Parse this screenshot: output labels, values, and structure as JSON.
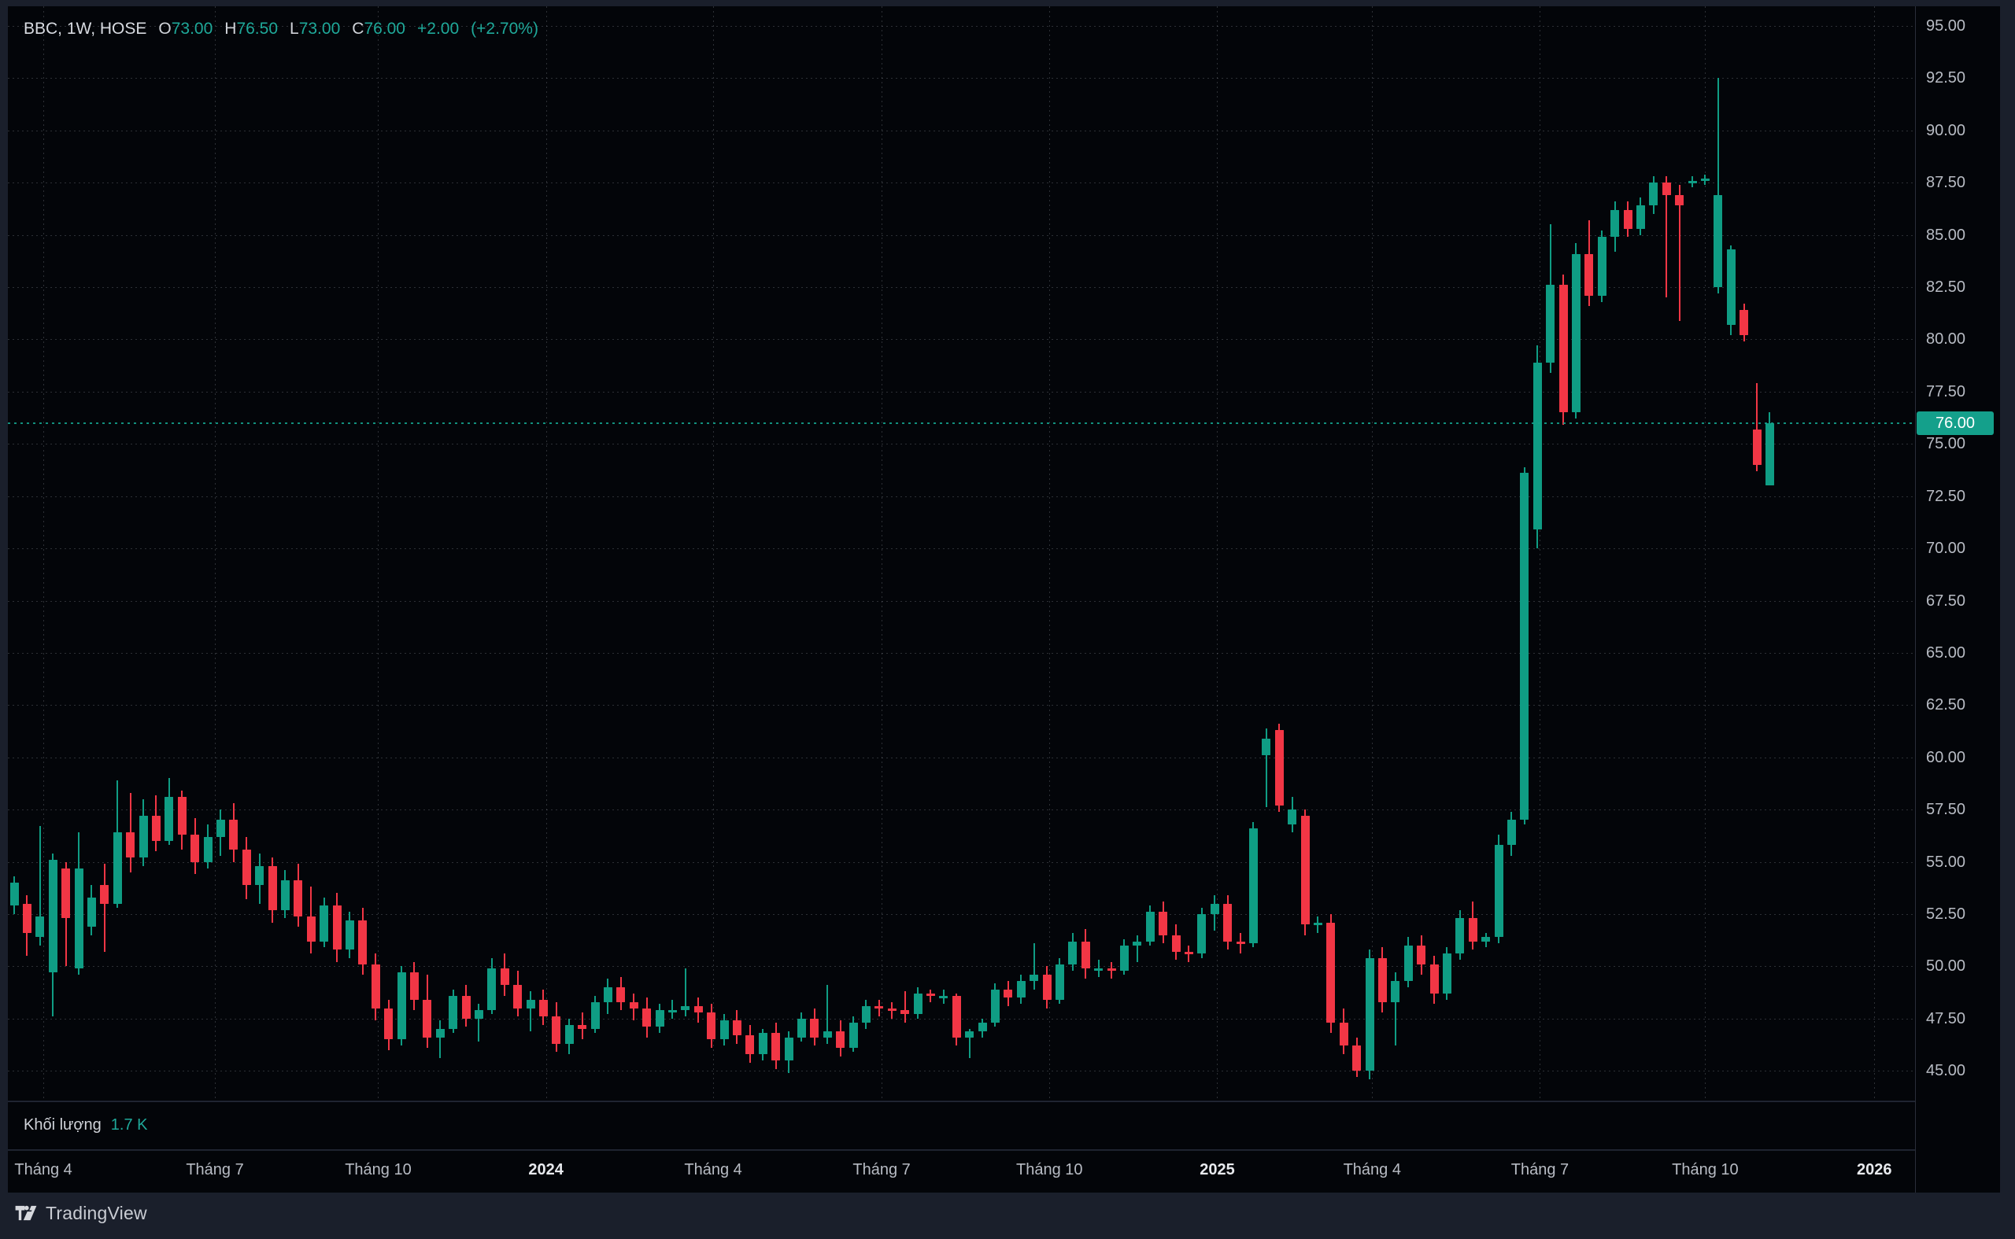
{
  "colors": {
    "up": "#0f9d84",
    "down": "#f23645",
    "accent": "#14a08b",
    "background": "#030509",
    "frame": "#1a1f2b",
    "axis_text": "#b8bcc4"
  },
  "legend": {
    "title": "BBC, 1W, HOSE",
    "open_label": "O",
    "open_value": "73.00",
    "high_label": "H",
    "high_value": "76.50",
    "low_label": "L",
    "low_value": "73.00",
    "close_label": "C",
    "close_value": "76.00",
    "change": "+2.00",
    "change_pct": "(+2.70%)"
  },
  "price_axis": {
    "labels": [
      "95.00",
      "92.50",
      "90.00",
      "87.50",
      "85.00",
      "82.50",
      "80.00",
      "77.50",
      "75.00",
      "72.50",
      "70.00",
      "67.50",
      "65.00",
      "62.50",
      "60.00",
      "57.50",
      "55.00",
      "52.50",
      "50.00",
      "47.50",
      "45.00"
    ],
    "current_price_label": "76.00"
  },
  "time_axis": {
    "labels": [
      {
        "text": "Tháng 4",
        "i": 2.26,
        "year": false
      },
      {
        "text": "Tháng 7",
        "i": 15.55,
        "year": false
      },
      {
        "text": "Tháng 10",
        "i": 28.2,
        "year": false
      },
      {
        "text": "2024",
        "i": 41.2,
        "year": true
      },
      {
        "text": "Tháng 4",
        "i": 54.15,
        "year": false
      },
      {
        "text": "Tháng 7",
        "i": 67.2,
        "year": false
      },
      {
        "text": "Tháng 10",
        "i": 80.2,
        "year": false
      },
      {
        "text": "2025",
        "i": 93.2,
        "year": true
      },
      {
        "text": "Tháng 4",
        "i": 105.2,
        "year": false
      },
      {
        "text": "Tháng 7",
        "i": 118.2,
        "year": false
      },
      {
        "text": "Tháng 10",
        "i": 131.0,
        "year": false
      },
      {
        "text": "2026",
        "i": 144.1,
        "year": true
      }
    ]
  },
  "volume_pane": {
    "title": "Khối lượng",
    "value": "1.7 K"
  },
  "watermark": {
    "icon": "tradingview-logo",
    "text": "TradingView"
  },
  "chart_data": {
    "type": "candlestick",
    "symbol": "BBC",
    "interval": "1W",
    "exchange": "HOSE",
    "last": {
      "open": 73.0,
      "high": 76.5,
      "low": 73.0,
      "close": 76.0,
      "change": 2.0,
      "change_pct": 2.7
    },
    "current_price": 76.0,
    "last_bar_volume": "1.7 K",
    "price_axis_range": [
      43.6,
      95.9
    ],
    "price_step": 2.5,
    "grid": true,
    "x_axis_labels": [
      "Tháng 4",
      "Tháng 7",
      "Tháng 10",
      "2024",
      "Tháng 4",
      "Tháng 7",
      "Tháng 10",
      "2025",
      "Tháng 4",
      "Tháng 7",
      "Tháng 10",
      "2026"
    ],
    "candles_format": [
      "open",
      "high",
      "low",
      "close"
    ],
    "candles": [
      [
        52.9,
        54.3,
        52.5,
        54.0
      ],
      [
        53.0,
        53.4,
        50.5,
        51.6
      ],
      [
        51.4,
        56.7,
        51.0,
        52.4
      ],
      [
        49.7,
        55.4,
        47.6,
        55.1
      ],
      [
        54.7,
        55.0,
        50.0,
        52.3
      ],
      [
        49.9,
        56.4,
        49.6,
        54.7
      ],
      [
        51.9,
        53.9,
        51.5,
        53.3
      ],
      [
        53.9,
        54.9,
        50.7,
        53.0
      ],
      [
        53.0,
        58.9,
        52.8,
        56.4
      ],
      [
        56.4,
        58.3,
        54.5,
        55.2
      ],
      [
        55.2,
        58.0,
        54.8,
        57.2
      ],
      [
        57.2,
        58.2,
        55.5,
        56.0
      ],
      [
        56.0,
        59.0,
        55.8,
        58.1
      ],
      [
        58.1,
        58.4,
        55.6,
        56.3
      ],
      [
        56.3,
        57.1,
        54.4,
        55.0
      ],
      [
        55.0,
        56.8,
        54.7,
        56.2
      ],
      [
        56.2,
        57.5,
        55.3,
        57.0
      ],
      [
        57.0,
        57.8,
        55.0,
        55.6
      ],
      [
        55.6,
        56.2,
        53.2,
        53.9
      ],
      [
        53.9,
        55.4,
        53.0,
        54.8
      ],
      [
        54.8,
        55.2,
        52.1,
        52.7
      ],
      [
        52.7,
        54.6,
        52.3,
        54.1
      ],
      [
        54.1,
        54.9,
        51.9,
        52.4
      ],
      [
        52.4,
        53.8,
        50.6,
        51.2
      ],
      [
        51.2,
        53.3,
        50.9,
        52.9
      ],
      [
        52.9,
        53.5,
        50.2,
        50.8
      ],
      [
        50.8,
        52.6,
        50.4,
        52.2
      ],
      [
        52.2,
        52.8,
        49.6,
        50.1
      ],
      [
        50.1,
        50.6,
        47.4,
        48.0
      ],
      [
        48.0,
        48.4,
        46.0,
        46.5
      ],
      [
        46.5,
        50.0,
        46.2,
        49.7
      ],
      [
        49.7,
        50.2,
        47.9,
        48.4
      ],
      [
        48.4,
        49.6,
        46.1,
        46.6
      ],
      [
        46.6,
        47.4,
        45.6,
        47.0
      ],
      [
        47.0,
        48.9,
        46.8,
        48.6
      ],
      [
        48.6,
        49.1,
        47.1,
        47.5
      ],
      [
        47.5,
        48.2,
        46.4,
        47.9
      ],
      [
        47.9,
        50.4,
        47.7,
        49.9
      ],
      [
        49.9,
        50.6,
        48.6,
        49.1
      ],
      [
        49.1,
        49.8,
        47.6,
        48.0
      ],
      [
        48.0,
        48.8,
        46.9,
        48.4
      ],
      [
        48.4,
        48.9,
        47.2,
        47.6
      ],
      [
        47.6,
        48.3,
        45.9,
        46.3
      ],
      [
        46.3,
        47.5,
        45.8,
        47.2
      ],
      [
        47.2,
        47.8,
        46.5,
        47.0
      ],
      [
        47.0,
        48.6,
        46.8,
        48.3
      ],
      [
        48.3,
        49.4,
        47.7,
        49.0
      ],
      [
        49.0,
        49.5,
        47.9,
        48.3
      ],
      [
        48.3,
        48.7,
        47.4,
        48.0
      ],
      [
        48.0,
        48.5,
        46.6,
        47.1
      ],
      [
        47.1,
        48.2,
        46.8,
        47.9
      ],
      [
        47.9,
        48.4,
        47.5,
        47.9
      ],
      [
        47.9,
        49.9,
        47.6,
        48.1
      ],
      [
        48.1,
        48.5,
        47.3,
        47.8
      ],
      [
        47.8,
        48.2,
        46.1,
        46.5
      ],
      [
        46.5,
        47.7,
        46.2,
        47.4
      ],
      [
        47.4,
        47.9,
        46.3,
        46.7
      ],
      [
        46.7,
        47.2,
        45.4,
        45.8
      ],
      [
        45.8,
        47.0,
        45.5,
        46.8
      ],
      [
        46.8,
        47.3,
        45.1,
        45.5
      ],
      [
        45.5,
        46.9,
        44.9,
        46.6
      ],
      [
        46.6,
        47.8,
        46.4,
        47.5
      ],
      [
        47.5,
        48.0,
        46.2,
        46.6
      ],
      [
        46.6,
        49.1,
        46.3,
        46.9
      ],
      [
        46.9,
        47.4,
        45.7,
        46.1
      ],
      [
        46.1,
        47.6,
        45.9,
        47.3
      ],
      [
        47.3,
        48.4,
        47.0,
        48.1
      ],
      [
        48.1,
        48.4,
        47.6,
        48.0
      ],
      [
        48.0,
        48.3,
        47.5,
        47.9
      ],
      [
        47.9,
        48.8,
        47.3,
        47.7
      ],
      [
        47.7,
        49.0,
        47.5,
        48.7
      ],
      [
        48.7,
        48.9,
        48.3,
        48.6
      ],
      [
        48.6,
        48.9,
        48.2,
        48.6
      ],
      [
        48.6,
        48.7,
        46.2,
        46.6
      ],
      [
        46.6,
        47.0,
        45.6,
        46.9
      ],
      [
        46.9,
        47.5,
        46.6,
        47.3
      ],
      [
        47.3,
        49.2,
        47.1,
        48.9
      ],
      [
        48.9,
        49.3,
        48.1,
        48.5
      ],
      [
        48.5,
        49.6,
        48.2,
        49.3
      ],
      [
        49.3,
        51.1,
        48.9,
        49.6
      ],
      [
        49.6,
        50.0,
        48.0,
        48.4
      ],
      [
        48.4,
        50.4,
        48.2,
        50.1
      ],
      [
        50.1,
        51.6,
        49.8,
        51.2
      ],
      [
        51.2,
        51.8,
        49.4,
        49.9
      ],
      [
        49.9,
        50.3,
        49.5,
        49.9
      ],
      [
        49.9,
        50.2,
        49.4,
        49.8
      ],
      [
        49.8,
        51.3,
        49.6,
        51.0
      ],
      [
        51.0,
        51.5,
        50.2,
        51.2
      ],
      [
        51.2,
        52.9,
        51.0,
        52.6
      ],
      [
        52.6,
        53.1,
        51.1,
        51.5
      ],
      [
        51.5,
        52.0,
        50.3,
        50.7
      ],
      [
        50.7,
        51.0,
        50.2,
        50.6
      ],
      [
        50.6,
        52.8,
        50.4,
        52.5
      ],
      [
        52.5,
        53.4,
        51.7,
        53.0
      ],
      [
        53.0,
        53.4,
        50.8,
        51.2
      ],
      [
        51.2,
        51.6,
        50.6,
        51.1
      ],
      [
        51.1,
        56.9,
        50.9,
        56.6
      ],
      [
        60.1,
        61.4,
        57.6,
        60.9
      ],
      [
        61.3,
        61.6,
        57.4,
        57.7
      ],
      [
        56.8,
        58.1,
        56.4,
        57.5
      ],
      [
        57.2,
        57.5,
        51.5,
        52.0
      ],
      [
        52.0,
        52.4,
        51.6,
        52.1
      ],
      [
        52.1,
        52.5,
        46.8,
        47.3
      ],
      [
        47.3,
        48.0,
        45.8,
        46.2
      ],
      [
        46.2,
        46.6,
        44.7,
        45.0
      ],
      [
        45.0,
        50.8,
        44.6,
        50.4
      ],
      [
        50.4,
        50.9,
        47.8,
        48.3
      ],
      [
        48.3,
        49.7,
        46.2,
        49.3
      ],
      [
        49.3,
        51.4,
        49.0,
        51.0
      ],
      [
        51.0,
        51.5,
        49.6,
        50.1
      ],
      [
        50.1,
        50.5,
        48.2,
        48.7
      ],
      [
        48.7,
        50.9,
        48.4,
        50.6
      ],
      [
        50.6,
        52.7,
        50.3,
        52.3
      ],
      [
        52.3,
        53.1,
        50.8,
        51.2
      ],
      [
        51.2,
        51.6,
        50.9,
        51.4
      ],
      [
        51.4,
        56.3,
        51.1,
        55.8
      ],
      [
        55.8,
        57.4,
        55.3,
        57.0
      ],
      [
        57.0,
        73.9,
        56.8,
        73.6
      ],
      [
        70.9,
        79.7,
        70.0,
        78.9
      ],
      [
        78.9,
        85.5,
        78.4,
        82.6
      ],
      [
        82.6,
        83.1,
        75.9,
        76.5
      ],
      [
        76.5,
        84.6,
        76.2,
        84.1
      ],
      [
        84.1,
        85.7,
        81.6,
        82.1
      ],
      [
        82.1,
        85.2,
        81.8,
        84.9
      ],
      [
        84.9,
        86.6,
        84.2,
        86.2
      ],
      [
        86.2,
        86.6,
        84.9,
        85.3
      ],
      [
        85.3,
        86.8,
        85.0,
        86.4
      ],
      [
        86.4,
        87.8,
        86.0,
        87.5
      ],
      [
        87.5,
        87.8,
        82.0,
        86.9
      ],
      [
        86.9,
        87.4,
        80.9,
        86.4
      ],
      [
        87.5,
        87.8,
        87.3,
        87.6
      ],
      [
        87.6,
        87.9,
        87.4,
        87.7
      ],
      [
        82.5,
        92.5,
        82.2,
        86.9
      ],
      [
        80.7,
        84.5,
        80.2,
        84.3
      ],
      [
        81.4,
        81.7,
        79.9,
        80.2
      ],
      [
        75.7,
        77.9,
        73.7,
        74.0
      ],
      [
        73.0,
        76.5,
        73.0,
        76.0
      ]
    ]
  }
}
